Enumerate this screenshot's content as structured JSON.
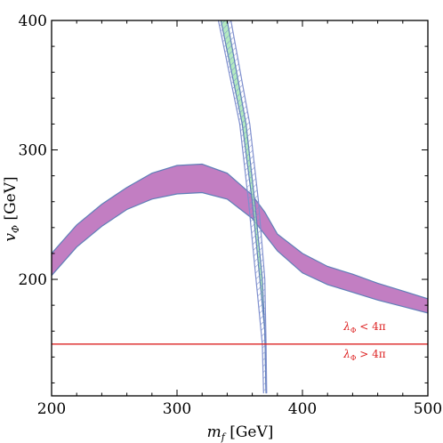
{
  "chart_data": {
    "type": "line",
    "xlabel": {
      "italic": "m",
      "sub": "f",
      "rest": " [GeV]"
    },
    "ylabel": {
      "italic": "v",
      "sub": "Φ",
      "rest": " [GeV]"
    },
    "xlim": [
      200,
      500
    ],
    "ylim": [
      110,
      400
    ],
    "xticks": [
      "200",
      "300",
      "400",
      "500"
    ],
    "yticks": [
      "200",
      "300",
      "400"
    ],
    "colors": {
      "purple_band": "#c27ec2",
      "band_edge": "#5f7fb8",
      "green_band": "#a6e8b5",
      "hatch_band": "#7f8fce",
      "red_line": "#dd2222"
    },
    "series": [
      {
        "lower": [
          [
            200,
            203
          ],
          [
            220,
            225
          ],
          [
            240,
            241
          ],
          [
            260,
            254
          ],
          [
            280,
            262
          ],
          [
            300,
            266
          ],
          [
            320,
            267
          ],
          [
            340,
            262
          ],
          [
            360,
            247
          ],
          [
            380,
            222
          ],
          [
            400,
            205
          ],
          [
            420,
            196
          ],
          [
            440,
            190
          ],
          [
            460,
            184
          ],
          [
            480,
            179
          ],
          [
            500,
            174
          ]
        ],
        "upper": [
          [
            200,
            220
          ],
          [
            220,
            242
          ],
          [
            240,
            258
          ],
          [
            260,
            271
          ],
          [
            280,
            282
          ],
          [
            300,
            288
          ],
          [
            320,
            289
          ],
          [
            340,
            282
          ],
          [
            360,
            265
          ],
          [
            370,
            252
          ],
          [
            380,
            235
          ],
          [
            400,
            220
          ],
          [
            420,
            210
          ],
          [
            440,
            204
          ],
          [
            460,
            197
          ],
          [
            480,
            191
          ],
          [
            500,
            185
          ]
        ]
      },
      {
        "lower": [
          [
            335,
            400
          ],
          [
            352,
            320
          ],
          [
            360,
            260
          ],
          [
            366,
            200
          ],
          [
            370,
            160
          ],
          [
            371,
            112
          ]
        ],
        "upper": [
          [
            340,
            400
          ],
          [
            355,
            320
          ],
          [
            362,
            260
          ],
          [
            368,
            200
          ],
          [
            370,
            160
          ],
          [
            371,
            112
          ]
        ]
      },
      {
        "lower": [
          [
            333,
            400
          ],
          [
            350,
            320
          ],
          [
            357,
            260
          ],
          [
            363,
            200
          ],
          [
            368,
            150
          ],
          [
            369,
            112
          ]
        ],
        "upper": [
          [
            343,
            400
          ],
          [
            358,
            320
          ],
          [
            365,
            260
          ],
          [
            370,
            200
          ],
          [
            371,
            150
          ],
          [
            371.5,
            112
          ]
        ]
      }
    ],
    "threshold": {
      "y": 150,
      "label_above": "λ_Φ < 4π",
      "label_below": "λ_Φ > 4π"
    },
    "annotations": {
      "above": {
        "sym": "λ",
        "sub": "Φ",
        "rest": " < 4π"
      },
      "below": {
        "sym": "λ",
        "sub": "Φ",
        "rest": " > 4π"
      }
    }
  }
}
